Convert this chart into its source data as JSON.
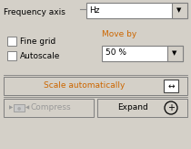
{
  "bg_color": "#d4d0c8",
  "white": "#ffffff",
  "text_color": "#000000",
  "orange_color": "#cc6600",
  "gray_text": "#999999",
  "border_dark": "#808080",
  "border_light": "#ffffff",
  "fig_w": 2.1,
  "fig_h": 1.63,
  "dpi": 100,
  "freq_label": "Frequency axis",
  "dd1_text": "Hz",
  "cb1_label": "Fine grid",
  "cb2_label": "Autoscale",
  "moveby_label": "Move by",
  "dd2_text": "50 %",
  "btn_scale_label": "Scale automatically",
  "btn_compress_label": "Compress",
  "btn_expand_label": "Expand",
  "font_size": 6.5
}
